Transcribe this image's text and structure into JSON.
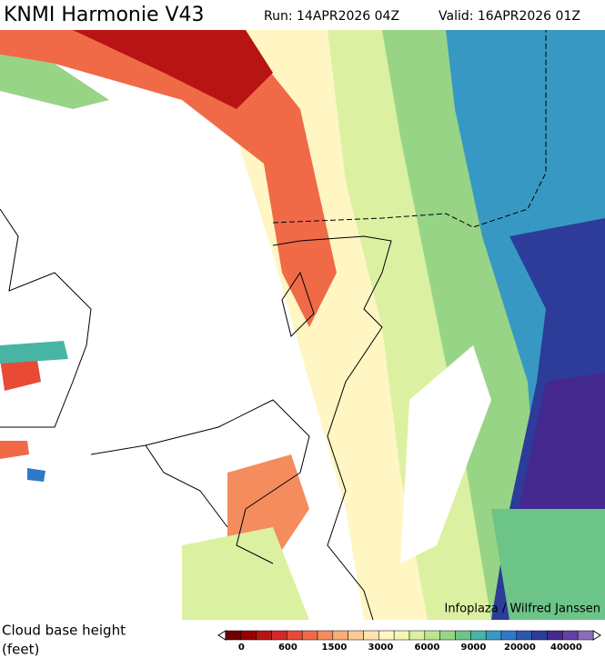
{
  "header": {
    "title": "KNMI Harmonie V43",
    "run": "Run: 14APR2026 04Z",
    "valid": "Valid: 16APR2026 01Z"
  },
  "map": {
    "credit": "Infoplaza / Wilfred Janssen"
  },
  "legend": {
    "title": "Cloud base height",
    "units": "(feet)",
    "ticks": [
      "0",
      "600",
      "1500",
      "3000",
      "6000",
      "9000",
      "20000",
      "40000"
    ],
    "colors": [
      "#6e0000",
      "#960000",
      "#b81414",
      "#d42828",
      "#e84a36",
      "#f06a48",
      "#f48c5e",
      "#f8ae78",
      "#fbcb94",
      "#fde4ae",
      "#fff6c4",
      "#f2f8b4",
      "#dcf0a2",
      "#bee492",
      "#98d486",
      "#6cc488",
      "#48b4a4",
      "#3898c4",
      "#3078c8",
      "#2a58b0",
      "#2c3c98",
      "#44288e",
      "#6440a6",
      "#8a6cbc"
    ]
  }
}
